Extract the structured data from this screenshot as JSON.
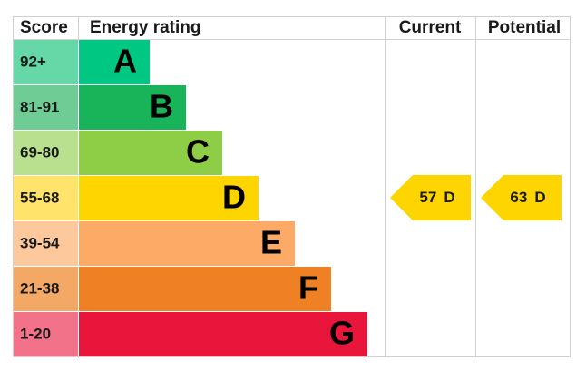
{
  "header": {
    "score": "Score",
    "rating": "Energy rating",
    "current": "Current",
    "potential": "Potential"
  },
  "rows": [
    {
      "score": "92+",
      "letter": "A"
    },
    {
      "score": "81-91",
      "letter": "B"
    },
    {
      "score": "69-80",
      "letter": "C"
    },
    {
      "score": "55-68",
      "letter": "D"
    },
    {
      "score": "39-54",
      "letter": "E"
    },
    {
      "score": "21-38",
      "letter": "F"
    },
    {
      "score": "1-20",
      "letter": "G"
    }
  ],
  "current": {
    "value": 57,
    "letter": "D"
  },
  "potential": {
    "value": 63,
    "letter": "D"
  }
}
